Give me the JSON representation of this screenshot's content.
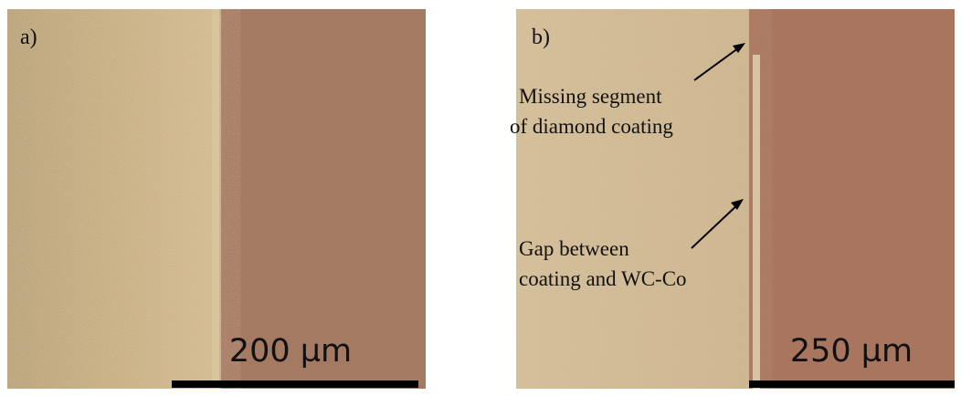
{
  "panels": [
    {
      "label": "a)",
      "scale_bar": "200 µm",
      "annotations": []
    },
    {
      "label": "b)",
      "scale_bar": "250 µm",
      "annotations": [
        {
          "lines": [
            "Missing segment",
            "of diamond coating"
          ]
        },
        {
          "lines": [
            "Gap between",
            "coating and WC-Co"
          ]
        }
      ]
    }
  ]
}
